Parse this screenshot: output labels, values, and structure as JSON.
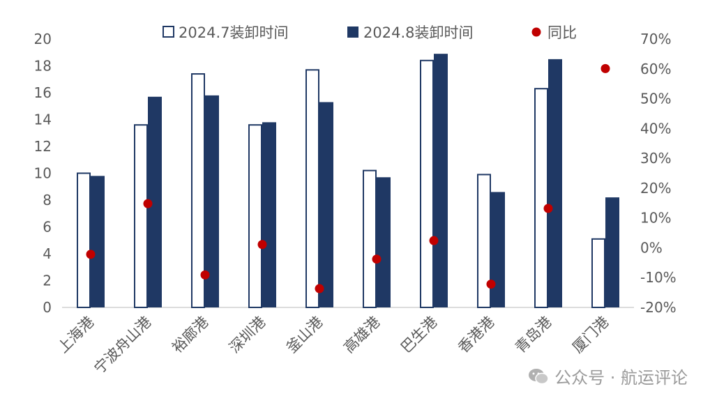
{
  "chart_data": {
    "type": "bar",
    "categories": [
      "上海港",
      "宁波舟山港",
      "裕廊港",
      "深圳港",
      "釜山港",
      "高雄港",
      "巴生港",
      "香港港",
      "青岛港",
      "厦门港"
    ],
    "series": [
      {
        "name": "2024.7装卸时间",
        "kind": "bar",
        "axis": "left",
        "style": "outline",
        "color": "#1f3864",
        "values": [
          10.0,
          13.6,
          17.4,
          13.6,
          17.7,
          10.2,
          18.4,
          9.9,
          16.3,
          5.1
        ]
      },
      {
        "name": "2024.8装卸时间",
        "kind": "bar",
        "axis": "left",
        "style": "filled",
        "color": "#1f3864",
        "values": [
          9.8,
          15.7,
          15.8,
          13.8,
          15.3,
          9.7,
          18.9,
          8.6,
          18.5,
          8.2
        ]
      },
      {
        "name": "同比",
        "kind": "scatter",
        "axis": "right",
        "color": "#c00000",
        "values": [
          -2.2,
          14.8,
          -9.1,
          1.1,
          -13.7,
          -3.8,
          2.4,
          -12.2,
          13.2,
          60.1
        ]
      }
    ],
    "y_left": {
      "range": [
        0,
        20
      ],
      "ticks": [
        "0",
        "2",
        "4",
        "6",
        "8",
        "10",
        "12",
        "14",
        "16",
        "18",
        "20"
      ]
    },
    "y_right": {
      "range": [
        -20,
        70
      ],
      "unit": "%",
      "ticks": [
        "-20%",
        "-10%",
        "0%",
        "10%",
        "20%",
        "30%",
        "40%",
        "50%",
        "60%",
        "70%"
      ]
    },
    "legend_placement": "top",
    "grid": false
  },
  "watermark": {
    "text": "公众号 · 航运评论",
    "icon": "wechat-icon"
  }
}
